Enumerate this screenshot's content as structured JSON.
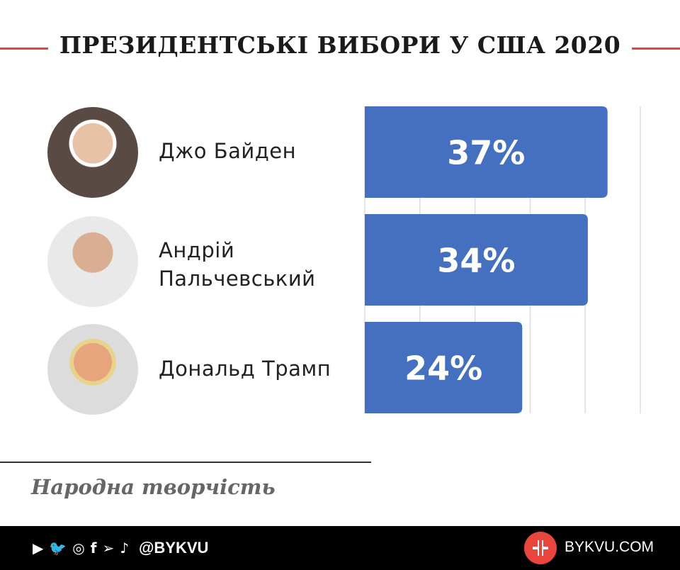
{
  "header": {
    "title": "ПРЕЗИДЕНТСЬКІ ВИБОРИ У США 2020",
    "accent": "#e0473c"
  },
  "chart_data": {
    "type": "bar",
    "orientation": "horizontal",
    "categories": [
      "Джо Байден",
      "Андрій Пальчевський",
      "Дональд Трамп"
    ],
    "category_lines": [
      [
        "Джо Байден"
      ],
      [
        "Андрій",
        "Пальчевський"
      ],
      [
        "Дональд Трамп"
      ]
    ],
    "values": [
      37,
      34,
      24
    ],
    "labels": [
      "37%",
      "34%",
      "24%"
    ],
    "bar_color": "#4470bf",
    "grid": true,
    "xlim": [
      0,
      42
    ]
  },
  "source": "Народна творчість",
  "footer": {
    "handle": "@BYKVU",
    "site": "BYKVU.COM",
    "icons": [
      "youtube-icon",
      "twitter-icon",
      "instagram-icon",
      "facebook-icon",
      "telegram-icon",
      "tiktok-icon"
    ],
    "logo_color": "#e8453c"
  }
}
